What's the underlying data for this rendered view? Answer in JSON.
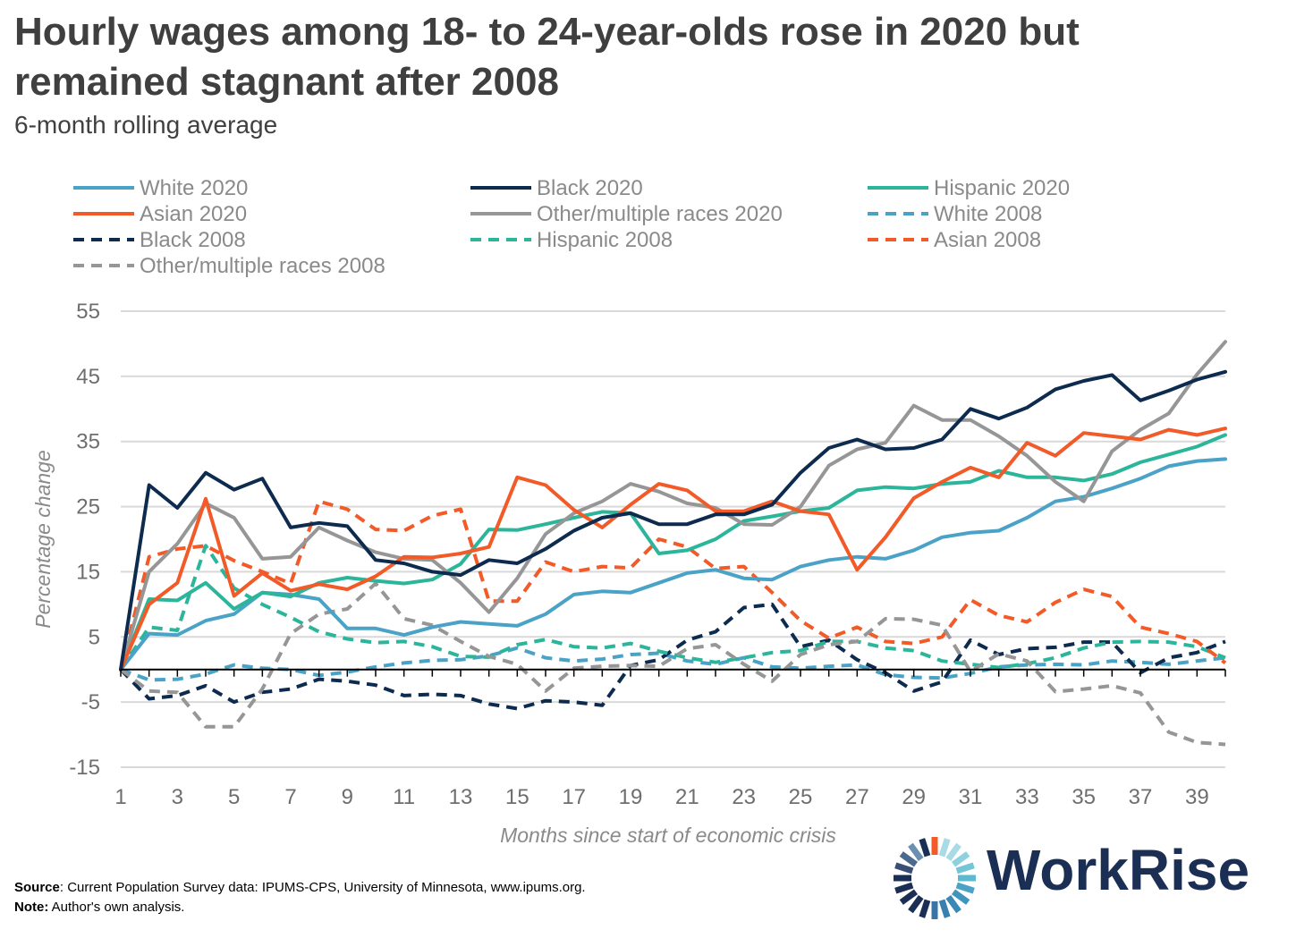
{
  "title_line1": "Hourly wages among 18- to 24-year-olds rose in 2020 but",
  "title_line2": "remained stagnant after 2008",
  "subtitle": "6-month rolling average",
  "source_label": "Source",
  "source_text": ": Current Population Survey data: IPUMS-CPS, University of Minnesota, www.ipums.org.",
  "note_label": "Note:",
  "note_text": " Author's own analysis.",
  "logo_text": "WorkRise",
  "colors": {
    "white": "#4aa3c7",
    "black": "#0d2b4f",
    "hispanic": "#2bb59a",
    "asian": "#f25a28",
    "other": "#969696",
    "grid": "#d9d9d9",
    "zero_line": "#000000"
  },
  "chart_data": {
    "type": "line",
    "xlabel": "Months since start of economic crisis",
    "ylabel": "Percentage change",
    "ylim": [
      -15,
      55
    ],
    "yticks": [
      55,
      45,
      35,
      25,
      15,
      5,
      -5,
      -15
    ],
    "xlim": [
      1,
      40
    ],
    "xticks": [
      1,
      3,
      5,
      7,
      9,
      11,
      13,
      15,
      17,
      19,
      21,
      23,
      25,
      27,
      29,
      31,
      33,
      35,
      37,
      39
    ],
    "grid": true,
    "legend_position": "top",
    "x": [
      1,
      2,
      3,
      4,
      5,
      6,
      7,
      8,
      9,
      10,
      11,
      12,
      13,
      14,
      15,
      16,
      17,
      18,
      19,
      20,
      21,
      22,
      23,
      24,
      25,
      26,
      27,
      28,
      29,
      30,
      31,
      32,
      33,
      34,
      35,
      36,
      37,
      38,
      39,
      40
    ],
    "series": [
      {
        "name": "White 2020",
        "color_key": "white",
        "dashed": false,
        "values": [
          0,
          5.5,
          5.3,
          7.5,
          8.5,
          11.8,
          11.5,
          10.8,
          6.3,
          6.3,
          5.3,
          6.5,
          7.3,
          7,
          6.7,
          8.5,
          11.5,
          12,
          11.8,
          13.3,
          14.8,
          15.3,
          14,
          13.8,
          15.8,
          16.8,
          17.3,
          17,
          18.3,
          20.3,
          21,
          21.3,
          23.3,
          25.8,
          26.5,
          27.8,
          29.3,
          31.2,
          32,
          32.3
        ]
      },
      {
        "name": "Black 2020",
        "color_key": "black",
        "dashed": false,
        "values": [
          0,
          28.3,
          24.8,
          30.2,
          27.6,
          29.3,
          21.8,
          22.5,
          22,
          16.8,
          16.3,
          15,
          14.5,
          16.8,
          16.3,
          18.5,
          21.3,
          23.3,
          24,
          22.3,
          22.3,
          23.8,
          23.8,
          25.3,
          30.2,
          34,
          35.3,
          33.8,
          34,
          35.3,
          40,
          38.5,
          40.2,
          43,
          44.3,
          45.2,
          41.3,
          42.8,
          44.5,
          45.7
        ]
      },
      {
        "name": "Hispanic 2020",
        "color_key": "hispanic",
        "dashed": false,
        "values": [
          0,
          10.8,
          10.6,
          13.3,
          9.3,
          11.8,
          11.2,
          13.3,
          14.1,
          13.6,
          13.2,
          13.8,
          16.2,
          21.5,
          21.4,
          22.3,
          23.3,
          24.2,
          24,
          17.8,
          18.3,
          20,
          22.8,
          23.5,
          24.3,
          24.8,
          27.5,
          28,
          27.8,
          28.5,
          28.8,
          30.5,
          29.5,
          29.5,
          29,
          30,
          31.8,
          33,
          34.2,
          36
        ]
      },
      {
        "name": "Asian 2020",
        "color_key": "asian",
        "dashed": false,
        "values": [
          0,
          10,
          13.3,
          26.2,
          11.3,
          14.8,
          12.1,
          13.1,
          12.3,
          14.3,
          17.3,
          17.2,
          17.8,
          18.8,
          29.5,
          28.3,
          24.5,
          21.8,
          25.3,
          28.5,
          27.5,
          24.3,
          24.3,
          25.8,
          24.3,
          23.8,
          15.3,
          20.3,
          26.3,
          28.8,
          31,
          29.5,
          34.8,
          32.8,
          36.3,
          35.8,
          35.3,
          36.8,
          36,
          37
        ]
      },
      {
        "name": "Other/multiple races 2020",
        "color_key": "other",
        "dashed": false,
        "values": [
          0,
          15,
          19.3,
          25.5,
          23.3,
          17,
          17.3,
          21.8,
          19.8,
          18,
          17,
          16.8,
          13.3,
          8.8,
          14,
          20.8,
          24,
          25.8,
          28.5,
          27.3,
          25.5,
          24.8,
          22.3,
          22.2,
          25,
          31.3,
          33.8,
          34.8,
          40.5,
          38.3,
          38.3,
          35.8,
          32.8,
          28.8,
          25.8,
          33.5,
          36.8,
          39.3,
          45.3,
          50.3
        ]
      },
      {
        "name": "White 2008",
        "color_key": "white",
        "dashed": true,
        "values": [
          0,
          -1.6,
          -1.5,
          -0.7,
          0.7,
          0.2,
          0,
          -0.9,
          -0.4,
          0.4,
          1,
          1.4,
          1.5,
          2.1,
          3.3,
          1.8,
          1.3,
          1.6,
          2.3,
          2.5,
          1.3,
          0.8,
          1.8,
          0.4,
          0.2,
          0.5,
          0.7,
          -0.8,
          -1.2,
          -1.3,
          -0.6,
          0.4,
          0.7,
          0.8,
          0.7,
          1.3,
          1.1,
          0.8,
          1.3,
          1.8
        ]
      },
      {
        "name": "Black 2008",
        "color_key": "black",
        "dashed": true,
        "values": [
          0,
          -4.5,
          -4,
          -2.5,
          -5,
          -3.5,
          -3,
          -1.5,
          -1.8,
          -2.4,
          -4,
          -3.8,
          -4,
          -5.3,
          -6,
          -4.8,
          -5,
          -5.5,
          0.6,
          1.5,
          4.5,
          5.8,
          9.5,
          10,
          3.5,
          4.5,
          1.5,
          -0.5,
          -3.3,
          -1.9,
          4.5,
          2.3,
          3.2,
          3.4,
          4.2,
          4.2,
          -0.5,
          1.8,
          2.6,
          4.3
        ]
      },
      {
        "name": "Hispanic 2008",
        "color_key": "hispanic",
        "dashed": true,
        "values": [
          0,
          6.5,
          6,
          19,
          12.5,
          10,
          8,
          5.8,
          4.7,
          4.1,
          4.3,
          3.5,
          2,
          1.9,
          3.8,
          4.6,
          3.5,
          3.3,
          4,
          2.8,
          1.8,
          1.1,
          1.8,
          2.6,
          2.9,
          4.3,
          4.3,
          3.3,
          2.9,
          1.3,
          0.8,
          0.3,
          0.9,
          1.8,
          3.3,
          4.2,
          4.3,
          4.2,
          3.5,
          1.8
        ]
      },
      {
        "name": "Asian 2008",
        "color_key": "asian",
        "dashed": true,
        "values": [
          0,
          17.3,
          18.5,
          19,
          16.7,
          15,
          13.2,
          25.8,
          24.6,
          21.5,
          21.3,
          23.6,
          24.6,
          10.5,
          10.5,
          16.5,
          15,
          15.8,
          15.6,
          20,
          18.8,
          15.5,
          15.8,
          11.8,
          7.5,
          4.8,
          6.5,
          4.3,
          4,
          5,
          10.7,
          8.3,
          7.3,
          10.3,
          12.3,
          11.2,
          6.5,
          5.5,
          4.3,
          1
        ]
      },
      {
        "name": "Other/multiple races 2008",
        "color_key": "other",
        "dashed": true,
        "values": [
          0,
          -3.3,
          -3.5,
          -8.8,
          -8.8,
          -3,
          5.5,
          8.5,
          9.3,
          13.2,
          7.8,
          6.8,
          4.3,
          2,
          0.8,
          -3.3,
          0.2,
          0.5,
          0.6,
          0.5,
          3.2,
          3.8,
          0.8,
          -1.8,
          2.3,
          3.8,
          4.3,
          7.8,
          7.7,
          6.8,
          -0.3,
          2.4,
          1.3,
          -3.4,
          -3,
          -2.5,
          -3.6,
          -9.6,
          -11.2,
          -11.5
        ]
      }
    ]
  }
}
